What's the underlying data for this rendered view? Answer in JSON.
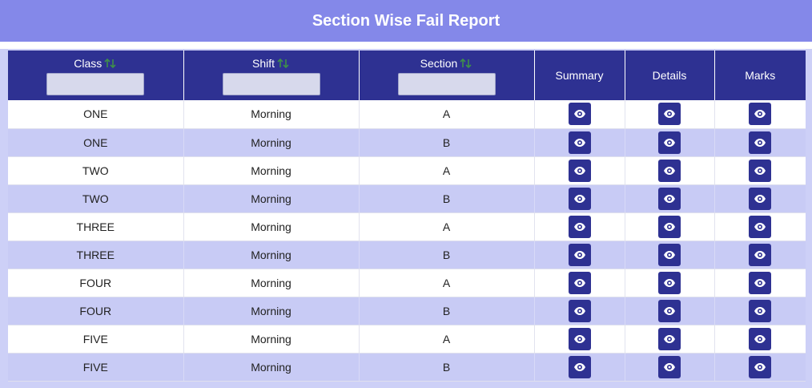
{
  "page": {
    "title": "Section Wise Fail Report"
  },
  "colors": {
    "title_bar": "#8488e9",
    "header_bg": "#2e3192",
    "row_alt": "#c8cbf5",
    "panel_bg": "#cdd0f7"
  },
  "table": {
    "columns": [
      {
        "key": "class",
        "label": "Class",
        "sortable": true,
        "filter_value": ""
      },
      {
        "key": "shift",
        "label": "Shift",
        "sortable": true,
        "filter_value": ""
      },
      {
        "key": "section",
        "label": "Section",
        "sortable": true,
        "filter_value": ""
      },
      {
        "key": "summary",
        "label": "Summary",
        "sortable": false
      },
      {
        "key": "details",
        "label": "Details",
        "sortable": false
      },
      {
        "key": "marks",
        "label": "Marks",
        "sortable": false
      }
    ],
    "action_icon": "eye-icon",
    "rows": [
      {
        "class": "ONE",
        "shift": "Morning",
        "section": "A"
      },
      {
        "class": "ONE",
        "shift": "Morning",
        "section": "B"
      },
      {
        "class": "TWO",
        "shift": "Morning",
        "section": "A"
      },
      {
        "class": "TWO",
        "shift": "Morning",
        "section": "B"
      },
      {
        "class": "THREE",
        "shift": "Morning",
        "section": "A"
      },
      {
        "class": "THREE",
        "shift": "Morning",
        "section": "B"
      },
      {
        "class": "FOUR",
        "shift": "Morning",
        "section": "A"
      },
      {
        "class": "FOUR",
        "shift": "Morning",
        "section": "B"
      },
      {
        "class": "FIVE",
        "shift": "Morning",
        "section": "A"
      },
      {
        "class": "FIVE",
        "shift": "Morning",
        "section": "B"
      }
    ]
  }
}
